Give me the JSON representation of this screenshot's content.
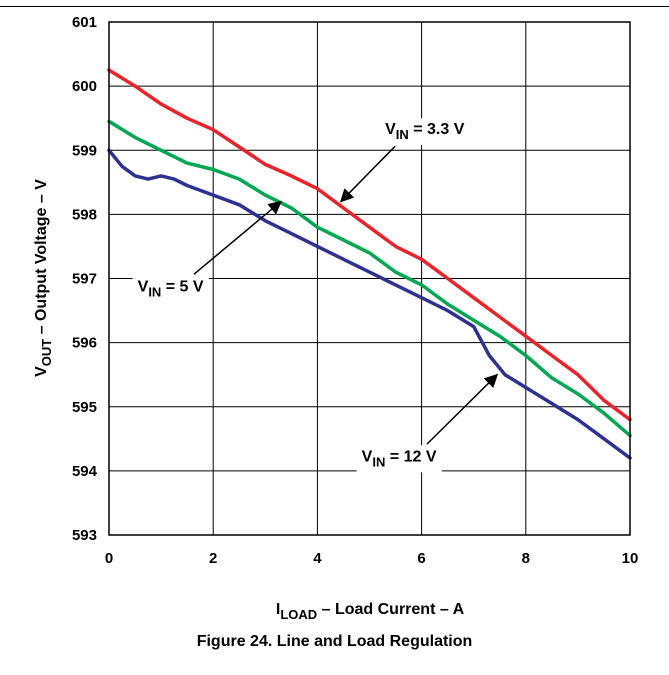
{
  "caption": "Figure 24. Line and Load Regulation",
  "chart_data": {
    "type": "line",
    "xlabel": {
      "main": "I",
      "sub": "LOAD",
      "rest": " – Load Current – A"
    },
    "ylabel": {
      "main": "V",
      "sub": "OUT",
      "rest": " – Output Voltage – V"
    },
    "xlim": [
      0,
      10
    ],
    "ylim": [
      593,
      601
    ],
    "xticks": [
      "0",
      "2",
      "4",
      "6",
      "8",
      "10"
    ],
    "yticks": [
      "593",
      "594",
      "595",
      "596",
      "597",
      "598",
      "599",
      "600",
      "601"
    ],
    "grid": true,
    "series": [
      {
        "color": "#e8232a",
        "x": [
          0,
          0.5,
          1,
          1.5,
          2,
          2.5,
          3,
          3.5,
          4,
          4.5,
          5,
          5.5,
          6,
          6.5,
          7,
          7.5,
          8,
          8.5,
          9,
          9.5,
          10
        ],
        "y": [
          600.25,
          600.0,
          599.72,
          599.5,
          599.32,
          599.05,
          598.78,
          598.6,
          598.4,
          598.1,
          597.8,
          597.5,
          597.3,
          597.0,
          596.7,
          596.4,
          596.1,
          595.8,
          595.5,
          595.1,
          594.8
        ]
      },
      {
        "color": "#00a651",
        "x": [
          0,
          0.5,
          1,
          1.5,
          2,
          2.5,
          3,
          3.5,
          4,
          4.5,
          5,
          5.5,
          6,
          6.5,
          7,
          7.5,
          8,
          8.5,
          9,
          9.5,
          10
        ],
        "y": [
          599.45,
          599.2,
          599.0,
          598.8,
          598.7,
          598.55,
          598.3,
          598.1,
          597.8,
          597.6,
          597.4,
          597.1,
          596.9,
          596.6,
          596.35,
          596.1,
          595.8,
          595.45,
          595.2,
          594.9,
          594.55
        ]
      },
      {
        "color": "#2e3192",
        "x": [
          0,
          0.25,
          0.5,
          0.75,
          1,
          1.25,
          1.5,
          2,
          2.5,
          3,
          3.5,
          4,
          4.5,
          5,
          5.5,
          6,
          6.5,
          7,
          7.3,
          7.6,
          8,
          8.5,
          9,
          9.5,
          10
        ],
        "y": [
          599.0,
          598.75,
          598.6,
          598.55,
          598.6,
          598.55,
          598.45,
          598.3,
          598.15,
          597.9,
          597.7,
          597.5,
          597.3,
          597.1,
          596.9,
          596.7,
          596.5,
          596.25,
          595.8,
          595.5,
          595.3,
          595.05,
          594.8,
          594.5,
          594.2
        ]
      }
    ],
    "annotations": [
      {
        "main": "V",
        "sub": "IN",
        "rest": " = 3.3 V",
        "x": 5.3,
        "y": 599.25,
        "arrow_to": [
          4.45,
          598.2
        ]
      },
      {
        "main": "V",
        "sub": "IN",
        "rest": " = 5 V",
        "x": 0.55,
        "y": 596.8,
        "arrow_to": [
          3.3,
          598.2
        ]
      },
      {
        "main": "V",
        "sub": "IN",
        "rest": " = 12 V",
        "x": 4.85,
        "y": 594.15,
        "arrow_to": [
          7.45,
          595.5
        ]
      }
    ]
  }
}
